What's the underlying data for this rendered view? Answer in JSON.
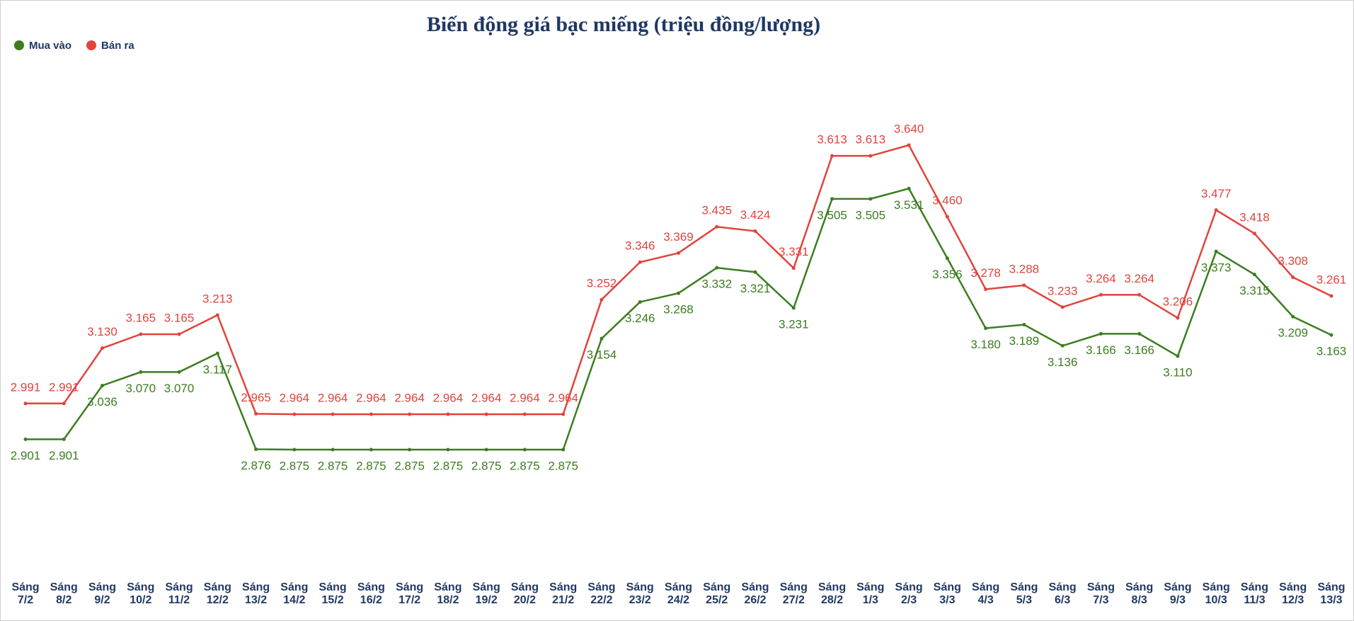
{
  "chart_data": {
    "type": "line",
    "title": "Biến động giá bạc miếng (triệu đồng/lượng)",
    "categories": [
      "Sáng 7/2",
      "Sáng 8/2",
      "Sáng 9/2",
      "Sáng 10/2",
      "Sáng 11/2",
      "Sáng 12/2",
      "Sáng 13/2",
      "Sáng 14/2",
      "Sáng 15/2",
      "Sáng 16/2",
      "Sáng 17/2",
      "Sáng 18/2",
      "Sáng 19/2",
      "Sáng 20/2",
      "Sáng 21/2",
      "Sáng 22/2",
      "Sáng 23/2",
      "Sáng 24/2",
      "Sáng 25/2",
      "Sáng 26/2",
      "Sáng 27/2",
      "Sáng 28/2",
      "Sáng 1/3",
      "Sáng 2/3",
      "Sáng 3/3",
      "Sáng 4/3",
      "Sáng 5/3",
      "Sáng 6/3",
      "Sáng 7/3",
      "Sáng 8/3",
      "Sáng 9/3",
      "Sáng 10/3",
      "Sáng 11/3",
      "Sáng 12/3",
      "Sáng 13/3"
    ],
    "legend": "top-left",
    "series": [
      {
        "name": "Mua vào",
        "color": "#3b7d1f",
        "values": [
          2.901,
          2.901,
          3.036,
          3.07,
          3.07,
          3.117,
          2.876,
          2.875,
          2.875,
          2.875,
          2.875,
          2.875,
          2.875,
          2.875,
          2.875,
          3.154,
          3.246,
          3.268,
          3.332,
          3.321,
          3.231,
          3.505,
          3.505,
          3.531,
          3.356,
          3.18,
          3.189,
          3.136,
          3.166,
          3.166,
          3.11,
          3.373,
          3.315,
          3.209,
          3.163
        ],
        "value_labels": [
          "2.901",
          "2.901",
          "3.036",
          "3.070",
          "3.070",
          "3.117",
          "2.876",
          "2.875",
          "2.875",
          "2.875",
          "2.875",
          "2.875",
          "2.875",
          "2.875",
          "2.875",
          "3.154",
          "3.246",
          "3.268",
          "3.332",
          "3.321",
          "3.231",
          "3.505",
          "3.505",
          "3.531",
          "3.356",
          "3.180",
          "3.189",
          "3.136",
          "3.166",
          "3.166",
          "3.110",
          "3.373",
          "3.315",
          "3.209",
          "3.163"
        ]
      },
      {
        "name": "Bán ra",
        "color": "#e0443c",
        "values": [
          2.991,
          2.991,
          3.13,
          3.165,
          3.165,
          3.213,
          2.965,
          2.964,
          2.964,
          2.964,
          2.964,
          2.964,
          2.964,
          2.964,
          2.964,
          3.252,
          3.346,
          3.369,
          3.435,
          3.424,
          3.331,
          3.613,
          3.613,
          3.64,
          3.46,
          3.278,
          3.288,
          3.233,
          3.264,
          3.264,
          3.206,
          3.477,
          3.418,
          3.308,
          3.261
        ],
        "value_labels": [
          "2.991",
          "2.991",
          "3.130",
          "3.165",
          "3.165",
          "3.213",
          "2.965",
          "2.964",
          "2.964",
          "2.964",
          "2.964",
          "2.964",
          "2.964",
          "2.964",
          "2.964",
          "3.252",
          "3.346",
          "3.369",
          "3.435",
          "3.424",
          "3.331",
          "3.613",
          "3.613",
          "3.640",
          "3.460",
          "3.278",
          "3.288",
          "3.233",
          "3.264",
          "3.264",
          "3.206",
          "3.477",
          "3.418",
          "3.308",
          "3.261"
        ]
      }
    ]
  }
}
